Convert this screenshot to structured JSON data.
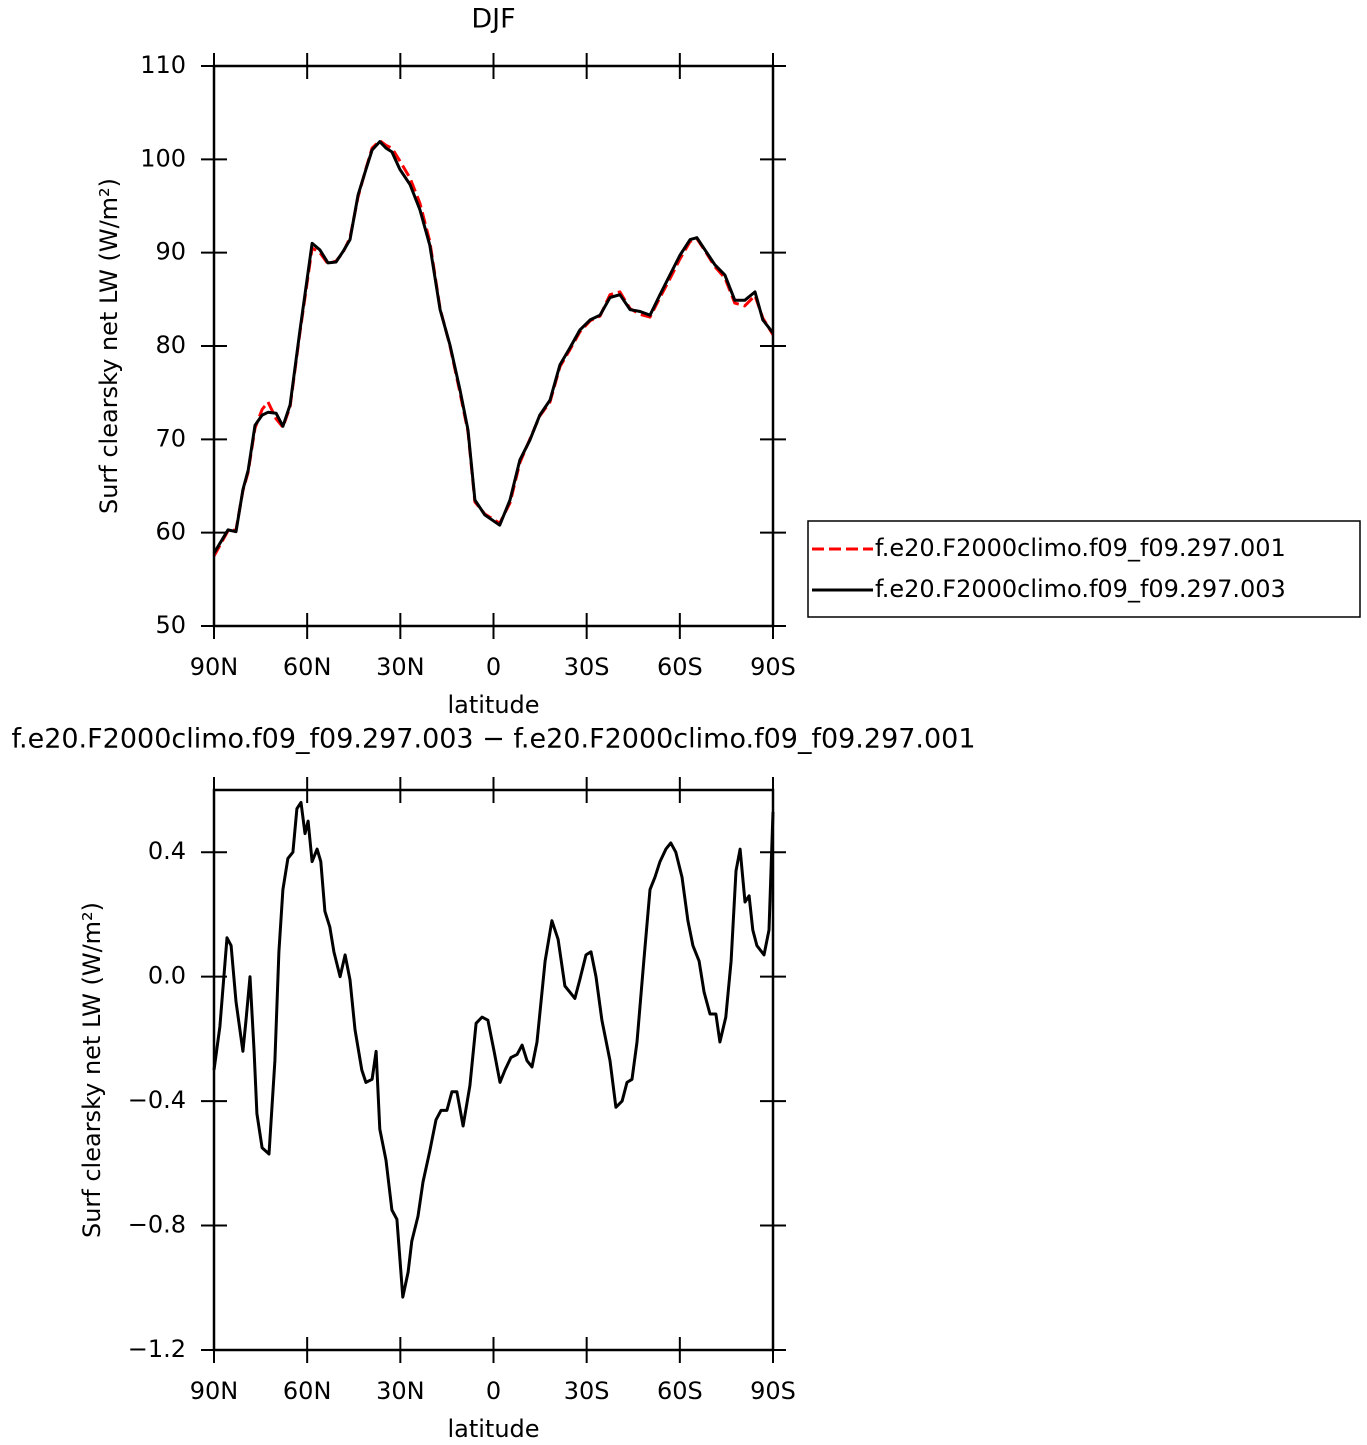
{
  "chart_data": [
    {
      "type": "line",
      "title": "DJF",
      "xlabel": "latitude",
      "ylabel": "Surf clearsky net LW (W/m²)",
      "x": [
        90,
        85.5,
        82.9,
        80.7,
        79,
        76.8,
        74.5,
        72.6,
        70,
        67.8,
        65.5,
        62.3,
        58.4,
        55.9,
        53.3,
        50.7,
        48.5,
        46.2,
        43.6,
        41.1,
        39.1,
        36.6,
        34.6,
        32.7,
        30.1,
        26.9,
        23.7,
        20.5,
        17.2,
        14,
        10.8,
        8.2,
        6,
        2.8,
        -2,
        -5.3,
        -8.5,
        -11.7,
        -14.9,
        -18.2,
        -21.4,
        -24.6,
        -27.8,
        -31.1,
        -34.3,
        -37.5,
        -40.7,
        -44,
        -47.2,
        -50.4,
        -53.6,
        -56.8,
        -60,
        -63.3,
        -65.5,
        -68.1,
        -71.3,
        -74.5,
        -77.7,
        -80.9,
        -84.2,
        -86.7,
        -90
      ],
      "series": [
        {
          "name": "f.e20.F2000climo.f09_f09.297.001",
          "color": "#ff0000",
          "line_style": "dashed",
          "values": [
            57.5,
            60.2,
            60.3,
            64.5,
            66.5,
            71.2,
            73.2,
            74.0,
            72.2,
            71.3,
            73.5,
            81.5,
            90.5,
            90.0,
            88.8,
            89.1,
            90.0,
            91.6,
            96.0,
            99.0,
            101.2,
            102.0,
            101.5,
            101.2,
            99.8,
            98.0,
            95.3,
            91.2,
            84.0,
            80.0,
            75.0,
            70.8,
            63.3,
            62.0,
            61.0,
            63.2,
            67.5,
            70.0,
            72.5,
            74.0,
            77.8,
            79.6,
            81.5,
            82.7,
            83.2,
            85.5,
            85.8,
            84.0,
            83.4,
            83.1,
            85.2,
            87.2,
            89.3,
            91.2,
            91.5,
            90.2,
            88.5,
            87.3,
            84.6,
            84.3,
            85.4,
            83.0,
            81.2
          ]
        },
        {
          "name": "f.e20.F2000climo.f09_f09.297.003",
          "color": "#000000",
          "line_style": "solid",
          "values": [
            57.8,
            60.3,
            60.1,
            64.6,
            66.7,
            71.5,
            72.6,
            72.9,
            72.8,
            71.4,
            73.7,
            81.7,
            91.0,
            90.3,
            88.9,
            89.0,
            90.1,
            91.4,
            96.2,
            98.9,
            101.0,
            101.9,
            101.2,
            100.8,
            98.9,
            97.3,
            94.6,
            90.8,
            83.9,
            80.1,
            75.3,
            71.0,
            63.5,
            61.9,
            60.8,
            63.5,
            67.8,
            69.9,
            72.6,
            74.2,
            78.0,
            79.8,
            81.7,
            82.8,
            83.3,
            85.2,
            85.5,
            83.9,
            83.7,
            83.3,
            85.5,
            87.6,
            89.7,
            91.4,
            91.6,
            90.3,
            88.7,
            87.6,
            84.9,
            84.9,
            85.8,
            82.8,
            81.4
          ]
        }
      ],
      "xlim": [
        90,
        -90
      ],
      "ylim": [
        50,
        110
      ],
      "xticks": [
        {
          "value": 90,
          "label": "90N"
        },
        {
          "value": 60,
          "label": "60N"
        },
        {
          "value": 30,
          "label": "30N"
        },
        0,
        {
          "value": -30,
          "label": "30S"
        },
        {
          "value": -60,
          "label": "60S"
        },
        {
          "value": -90,
          "label": "90S"
        }
      ],
      "yticks": [
        50,
        60,
        70,
        80,
        90,
        100,
        110
      ],
      "legend": "right"
    },
    {
      "type": "line",
      "title": "f.e20.F2000climo.f09_f09.297.003 − f.e20.F2000climo.f09_f09.297.001",
      "xlabel": "latitude",
      "ylabel": "Surf clearsky net LW (W/m²)",
      "x": [
        90,
        88.1,
        85.8,
        84.5,
        82.9,
        80.7,
        79.7,
        78.4,
        77.1,
        76.2,
        74.5,
        72.3,
        70.4,
        69.1,
        67.8,
        66.2,
        64.6,
        63.3,
        62.0,
        60.7,
        59.7,
        58.4,
        56.8,
        55.6,
        54.3,
        52.7,
        51.4,
        49.4,
        47.8,
        46.2,
        44.6,
        42.4,
        41.1,
        39.1,
        37.8,
        36.6,
        34.6,
        32.7,
        31.1,
        29.2,
        27.5,
        26.3,
        24.3,
        22.7,
        20.5,
        18.5,
        16.9,
        15.0,
        13.4,
        11.8,
        9.8,
        7.6,
        5.6,
        3.7,
        1.8,
        -0.2,
        -2.1,
        -3.7,
        -5.6,
        -7.6,
        -9.2,
        -10.8,
        -12.4,
        -14.0,
        -16.6,
        -18.8,
        -20.8,
        -23.0,
        -24.6,
        -26.2,
        -27.8,
        -29.8,
        -31.4,
        -33.0,
        -34.9,
        -37.5,
        -39.4,
        -41.4,
        -43.0,
        -44.6,
        -46.2,
        -48.4,
        -50.4,
        -52.0,
        -53.6,
        -55.5,
        -57.1,
        -58.7,
        -60.7,
        -62.6,
        -64.2,
        -66.2,
        -67.8,
        -69.7,
        -71.6,
        -72.9,
        -74.8,
        -76.5,
        -78.1,
        -79.4,
        -81.0,
        -82.3,
        -83.5,
        -84.8,
        -87.1,
        -88.7,
        -90
      ],
      "series": [
        {
          "color": "#000000",
          "line_style": "solid",
          "values": [
            -0.3,
            -0.16,
            0.125,
            0.1,
            -0.08,
            -0.24,
            -0.14,
            0.0,
            -0.24,
            -0.44,
            -0.55,
            -0.57,
            -0.27,
            0.08,
            0.28,
            0.38,
            0.4,
            0.54,
            0.56,
            0.46,
            0.5,
            0.37,
            0.41,
            0.37,
            0.21,
            0.16,
            0.08,
            0.0,
            0.07,
            -0.01,
            -0.17,
            -0.3,
            -0.34,
            -0.33,
            -0.24,
            -0.49,
            -0.59,
            -0.75,
            -0.78,
            -1.03,
            -0.95,
            -0.85,
            -0.77,
            -0.66,
            -0.56,
            -0.46,
            -0.43,
            -0.43,
            -0.37,
            -0.37,
            -0.48,
            -0.35,
            -0.15,
            -0.13,
            -0.14,
            -0.24,
            -0.34,
            -0.3,
            -0.26,
            -0.25,
            -0.22,
            -0.27,
            -0.29,
            -0.21,
            0.05,
            0.18,
            0.12,
            -0.03,
            -0.05,
            -0.07,
            -0.01,
            0.07,
            0.08,
            0.0,
            -0.14,
            -0.27,
            -0.42,
            -0.4,
            -0.34,
            -0.33,
            -0.21,
            0.05,
            0.28,
            0.32,
            0.37,
            0.41,
            0.43,
            0.4,
            0.32,
            0.18,
            0.1,
            0.05,
            -0.05,
            -0.12,
            -0.12,
            -0.21,
            -0.13,
            0.05,
            0.34,
            0.41,
            0.24,
            0.26,
            0.15,
            0.1,
            0.07,
            0.15,
            0.53
          ]
        }
      ],
      "xlim": [
        90,
        -90
      ],
      "ylim": [
        -1.2,
        0.6
      ],
      "xticks": [
        {
          "value": 90,
          "label": "90N"
        },
        {
          "value": 60,
          "label": "60N"
        },
        {
          "value": 30,
          "label": "30N"
        },
        0,
        {
          "value": -30,
          "label": "30S"
        },
        {
          "value": -60,
          "label": "60S"
        },
        {
          "value": -90,
          "label": "90S"
        }
      ],
      "yticks": [
        0.4,
        {
          "value": 0,
          "label": "0.0"
        },
        {
          "value": -0.4,
          "label": "−0.4"
        },
        {
          "value": -0.8,
          "label": "−0.8"
        },
        {
          "value": -1.2,
          "label": "−1.2"
        }
      ]
    }
  ]
}
